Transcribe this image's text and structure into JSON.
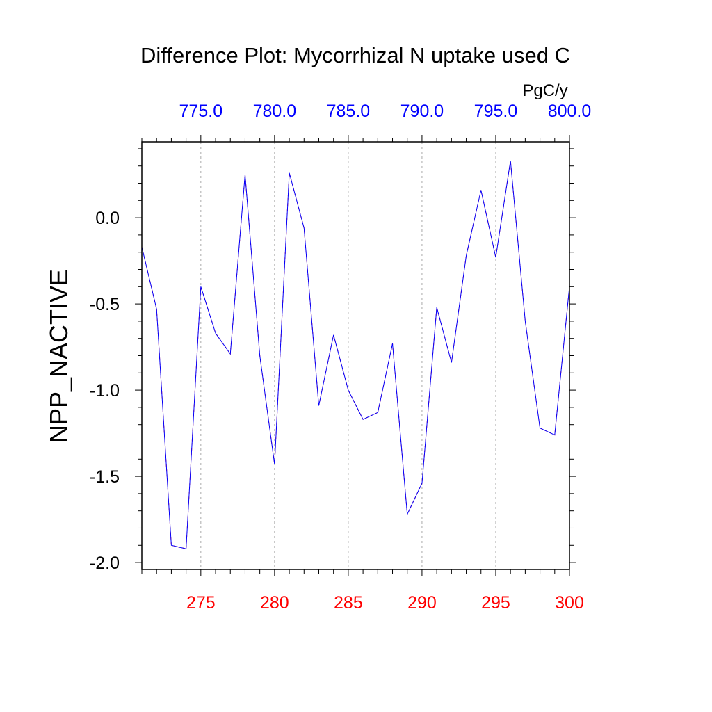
{
  "chart_data": {
    "type": "line",
    "title": "Difference Plot: Mycorrhizal N uptake used C",
    "ylabel": "NPP_NACTIVE",
    "top_axis_unit": "PgC/y",
    "bottom_axis_color": "#ff0000",
    "top_axis_color": "#0000ff",
    "xlim": [
      271,
      300
    ],
    "ylim": [
      -2.04,
      0.44
    ],
    "x_ticks": [
      275,
      280,
      285,
      290,
      295,
      300
    ],
    "x_tick_labels": [
      "275",
      "280",
      "285",
      "290",
      "295",
      "300"
    ],
    "top_ticks": [
      275,
      280,
      285,
      290,
      295,
      300
    ],
    "top_tick_labels": [
      "775.0",
      "780.0",
      "785.0",
      "790.0",
      "795.0",
      "800.0"
    ],
    "y_ticks": [
      0.0,
      -0.5,
      -1.0,
      -1.5,
      -2.0
    ],
    "y_tick_labels": [
      "0.0",
      "-0.5",
      "-1.0",
      "-1.5",
      "-2.0"
    ],
    "grid": "vertical dashed at major x ticks",
    "x": [
      271,
      272,
      273,
      274,
      275,
      276,
      277,
      278,
      279,
      280,
      281,
      282,
      283,
      284,
      285,
      286,
      287,
      288,
      289,
      290,
      291,
      292,
      293,
      294,
      295,
      296,
      297,
      298,
      299,
      300
    ],
    "series": [
      {
        "color": "#ff0000",
        "dash": "dashed",
        "values": [
          -0.17,
          -0.53,
          -1.9,
          -1.92,
          -0.4,
          -0.67,
          -0.79,
          0.25,
          -0.8,
          -1.43,
          0.26,
          -0.06,
          -1.09,
          -0.68,
          -1.0,
          -1.17,
          -1.13,
          -0.73,
          -1.72,
          -1.54,
          -0.52,
          -0.84,
          -0.22,
          0.16,
          -0.23,
          0.33,
          -0.6,
          -1.22,
          -1.26,
          -0.4
        ]
      },
      {
        "color": "#0000ff",
        "dash": "solid",
        "values": [
          -0.17,
          -0.53,
          -1.9,
          -1.92,
          -0.4,
          -0.67,
          -0.79,
          0.25,
          -0.8,
          -1.43,
          0.26,
          -0.06,
          -1.09,
          -0.68,
          -1.0,
          -1.17,
          -1.13,
          -0.73,
          -1.72,
          -1.54,
          -0.52,
          -0.84,
          -0.22,
          0.16,
          -0.23,
          0.33,
          -0.6,
          -1.22,
          -1.26,
          -0.4
        ]
      }
    ]
  }
}
